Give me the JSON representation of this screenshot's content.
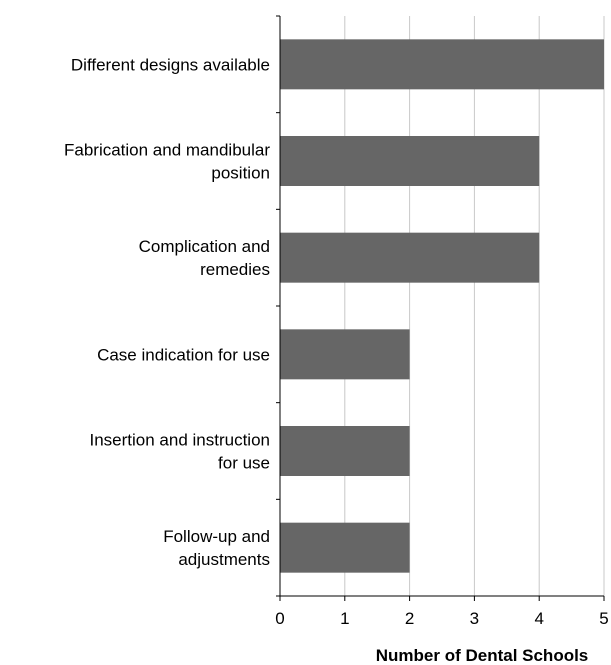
{
  "chart_data": {
    "type": "bar",
    "orientation": "horizontal",
    "categories": [
      [
        "Different designs available"
      ],
      [
        "Fabrication and mandibular",
        "position"
      ],
      [
        "Complication and",
        "remedies"
      ],
      [
        "Case indication for use"
      ],
      [
        "Insertion and instruction",
        "for use"
      ],
      [
        "Follow-up and",
        "adjustments"
      ]
    ],
    "values": [
      5,
      4,
      4,
      2,
      2,
      2
    ],
    "title": "",
    "xlabel": "Number of Dental Schools",
    "ylabel": "",
    "xlim": [
      0,
      5
    ],
    "xticks": [
      "0",
      "1",
      "2",
      "3",
      "4",
      "5"
    ],
    "grid": "vertical",
    "legend": "none",
    "bar_color": "#666666"
  }
}
